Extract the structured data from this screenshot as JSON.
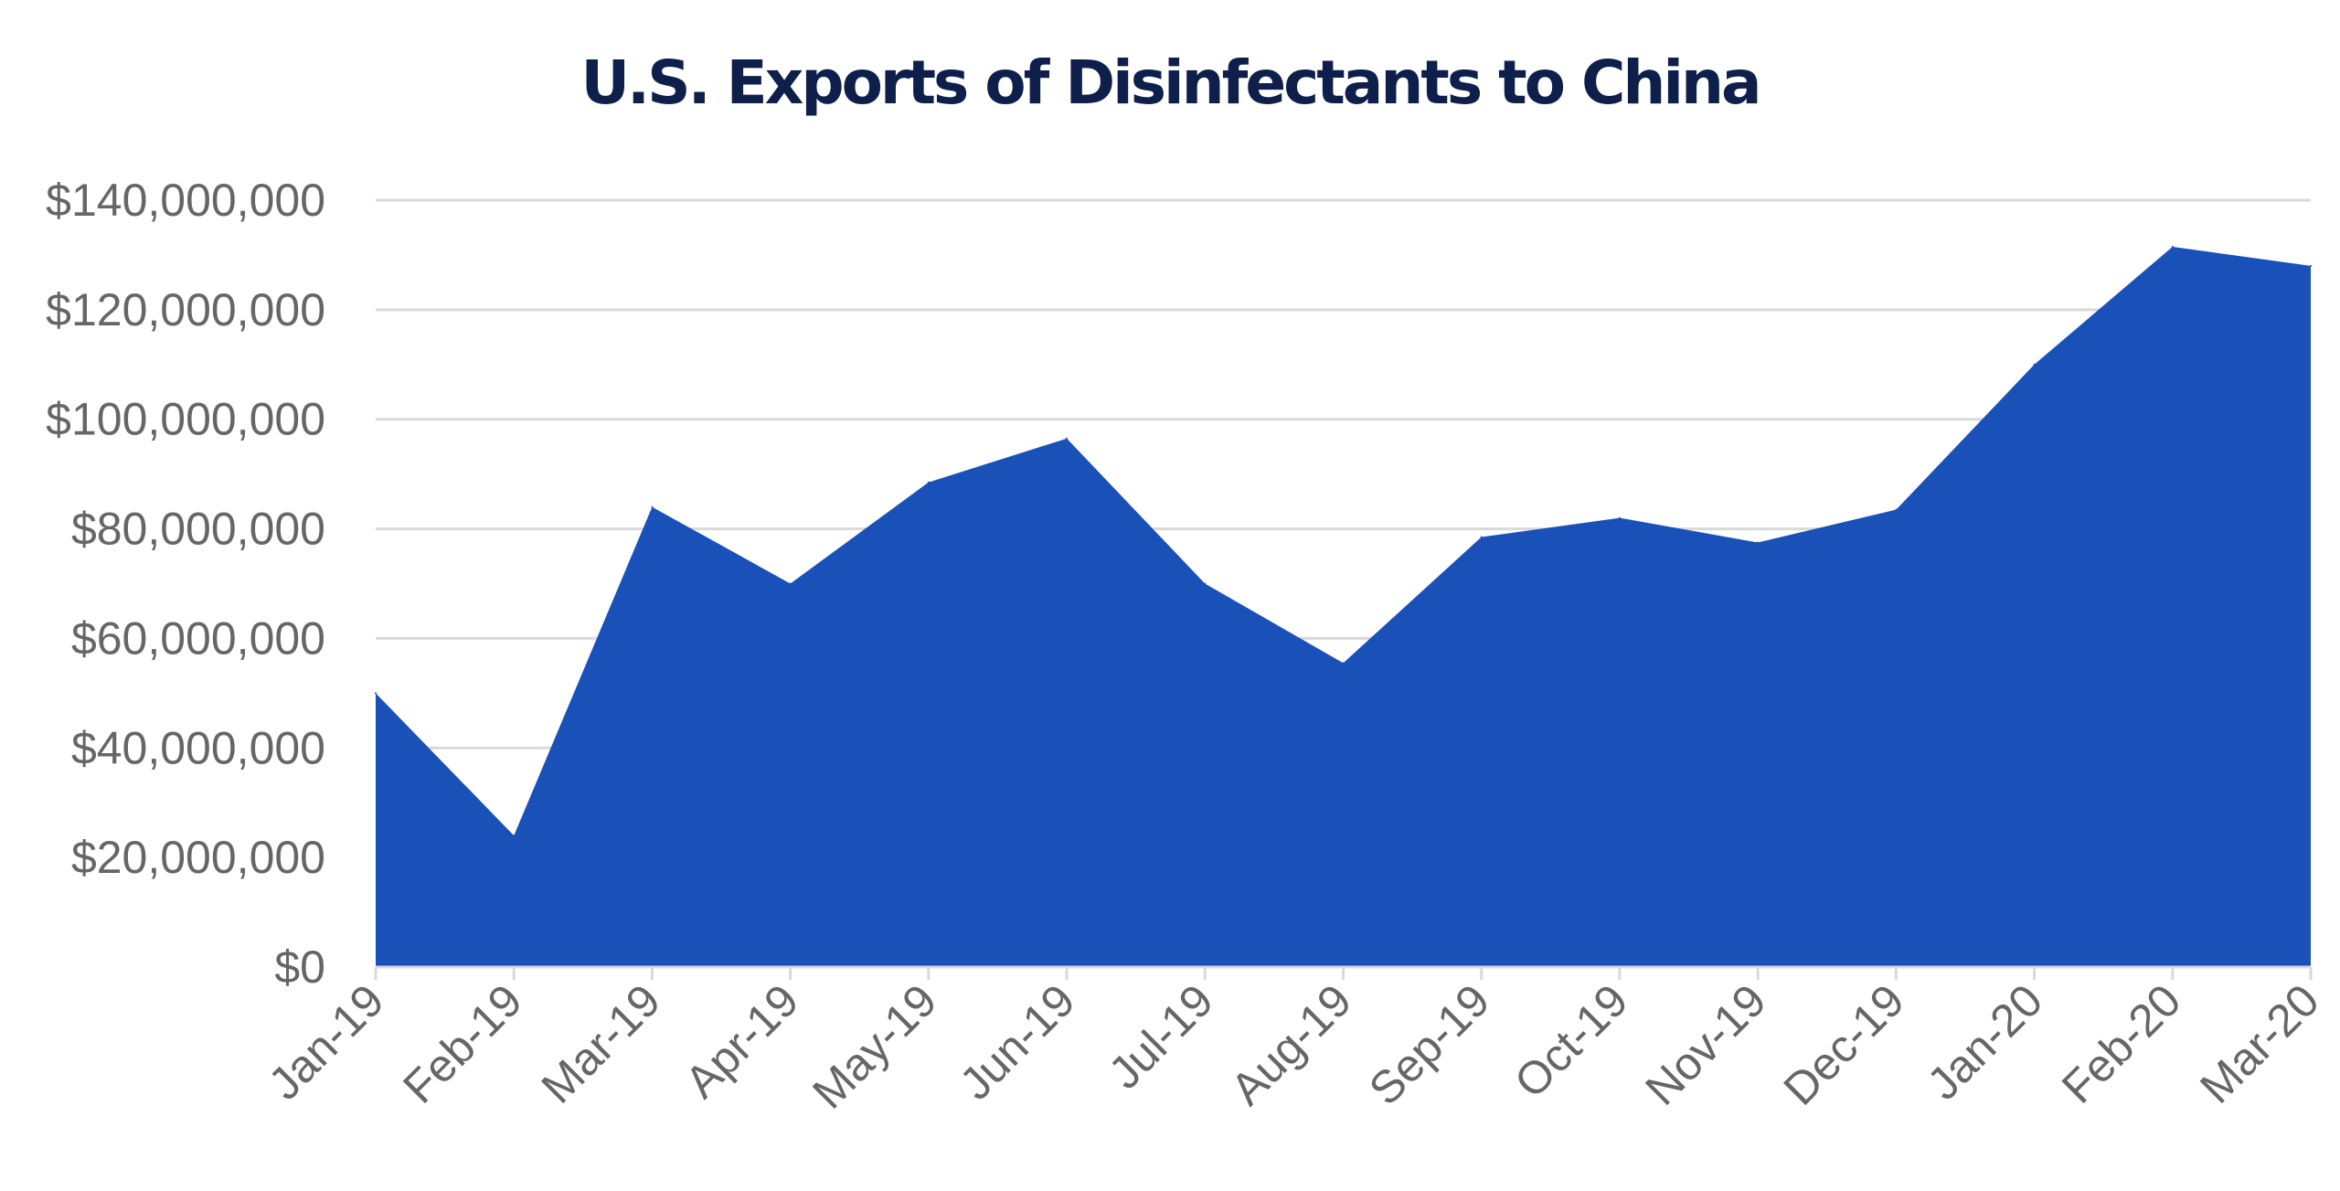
{
  "chart_data": {
    "type": "area",
    "title": "U.S. Exports of Disinfectants to China",
    "xlabel": "",
    "ylabel": "",
    "categories": [
      "Jan-19",
      "Feb-19",
      "Mar-19",
      "Apr-19",
      "May-19",
      "Jun-19",
      "Jul-19",
      "Aug-19",
      "Sep-19",
      "Oct-19",
      "Nov-19",
      "Dec-19",
      "Jan-20",
      "Feb-20",
      "Mar-20"
    ],
    "values": [
      50000000,
      24000000,
      84000000,
      70000000,
      88500000,
      96500000,
      70000000,
      55500000,
      78500000,
      82000000,
      77500000,
      83500000,
      110000000,
      131500000,
      128000000
    ],
    "ylim": [
      0,
      140000000
    ],
    "yticks": [
      0,
      20000000,
      40000000,
      60000000,
      80000000,
      100000000,
      120000000,
      140000000
    ],
    "ytick_labels": [
      "$0",
      "$20,000,000",
      "$40,000,000",
      "$60,000,000",
      "$80,000,000",
      "$100,000,000",
      "$120,000,000",
      "$140,000,000"
    ],
    "grid": true,
    "legend": "none",
    "colors": {
      "fill": "#1a51b8",
      "title": "#0d1f4a",
      "grid": "#d9d9d9",
      "axis_text": "#666666"
    }
  }
}
